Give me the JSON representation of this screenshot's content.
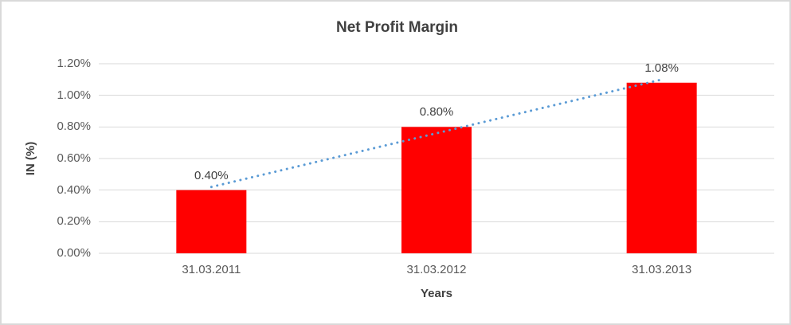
{
  "chart_data": {
    "type": "bar",
    "title": "Net Profit Margin",
    "xlabel": "Years",
    "ylabel": "IN (%)",
    "categories": [
      "31.03.2011",
      "31.03.2012",
      "31.03.2013"
    ],
    "values": [
      0.4,
      0.8,
      1.08
    ],
    "data_labels": [
      "0.40%",
      "0.80%",
      "1.08%"
    ],
    "ylim": [
      0,
      1.2
    ],
    "ytick_step": 0.2,
    "ytick_labels": [
      "0.00%",
      "0.20%",
      "0.40%",
      "0.60%",
      "0.80%",
      "1.00%",
      "1.20%"
    ],
    "grid": true,
    "legend": "none",
    "trendline": {
      "type": "linear",
      "style": "dotted"
    },
    "colors": {
      "bar": "#FF0000",
      "trendline": "#5B9BD5",
      "gridline": "#D9D9D9",
      "title_text": "#404040",
      "tick_text": "#595959"
    }
  }
}
